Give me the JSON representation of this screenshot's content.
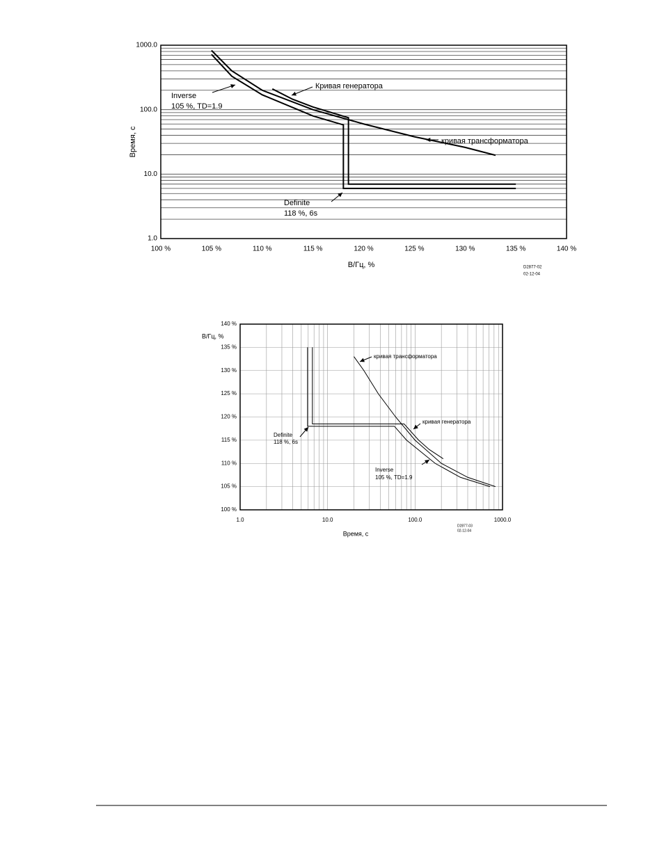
{
  "chart_data": [
    {
      "type": "line",
      "xlabel": "В/Гц, %",
      "ylabel": "Время, с",
      "xscale": "linear",
      "yscale": "log",
      "xlim": [
        100,
        140
      ],
      "ylim": [
        1,
        1000
      ],
      "xticks": [
        {
          "value": 100,
          "label": "100 %"
        },
        {
          "value": 105,
          "label": "105 %"
        },
        {
          "value": 110,
          "label": "110 %"
        },
        {
          "value": 115,
          "label": "115 %"
        },
        {
          "value": 120,
          "label": "120 %"
        },
        {
          "value": 125,
          "label": "125 %"
        },
        {
          "value": 130,
          "label": "130 %"
        },
        {
          "value": 135,
          "label": "135 %"
        },
        {
          "value": 140,
          "label": "140 %"
        }
      ],
      "yticks": [
        {
          "value": 1,
          "label": "1.0"
        },
        {
          "value": 10,
          "label": "10.0"
        },
        {
          "value": 100,
          "label": "100.0"
        },
        {
          "value": 1000,
          "label": "1000.0"
        }
      ],
      "grid": {
        "x": false,
        "y": true
      },
      "line_width": 2,
      "series": [
        {
          "color": "#000000",
          "x": [
            105,
            107,
            110,
            115,
            120,
            125,
            130,
            133
          ],
          "values": [
            830,
            400,
            200,
            100,
            60,
            38,
            26,
            19.6
          ]
        },
        {
          "color": "#000000",
          "x": [
            105,
            107,
            110,
            115,
            118,
            118,
            135
          ],
          "values": [
            720,
            330,
            170,
            80,
            58,
            6,
            6
          ]
        },
        {
          "color": "#000000",
          "x": [
            111,
            113,
            115,
            118.5,
            118.5,
            135
          ],
          "values": [
            210,
            145,
            110,
            75,
            7,
            7
          ]
        }
      ],
      "annotations": [
        "Кривая генератора",
        "кривая трансформатора",
        "Inverse",
        "105 %, TD=1.9",
        "Definite",
        "118 %, 6s"
      ],
      "code": [
        "D2877-02",
        "02-12-04"
      ]
    },
    {
      "type": "line",
      "xlabel": "Время, с",
      "ylabel": "В/Гц, %",
      "xscale": "log",
      "yscale": "linear",
      "xlim": [
        1,
        1000
      ],
      "ylim": [
        100,
        140
      ],
      "xticks": [
        {
          "value": 1,
          "label": "1.0"
        },
        {
          "value": 10,
          "label": "10.0"
        },
        {
          "value": 100,
          "label": "100.0"
        },
        {
          "value": 1000,
          "label": "1000.0"
        }
      ],
      "yticks": [
        {
          "value": 100,
          "label": "100 %"
        },
        {
          "value": 105,
          "label": "105 %"
        },
        {
          "value": 110,
          "label": "110 %"
        },
        {
          "value": 115,
          "label": "115 %"
        },
        {
          "value": 120,
          "label": "120 %"
        },
        {
          "value": 125,
          "label": "125 %"
        },
        {
          "value": 130,
          "label": "130 %"
        },
        {
          "value": 135,
          "label": "135 %"
        },
        {
          "value": 140,
          "label": "140 %"
        }
      ],
      "grid": {
        "x": true,
        "y": true
      },
      "line_width": 1,
      "series": [
        {
          "color": "#000000",
          "x": [
            20,
            26,
            38,
            60,
            100,
            200,
            400,
            830
          ],
          "values": [
            133,
            130,
            125,
            120,
            115,
            110,
            107,
            105
          ]
        },
        {
          "color": "#000000",
          "x": [
            5.9,
            5.9,
            58,
            80,
            170,
            330,
            720
          ],
          "values": [
            135,
            118,
            118,
            115,
            110,
            107,
            105
          ]
        },
        {
          "color": "#000000",
          "x": [
            6.7,
            6.7,
            75,
            110,
            145,
            210
          ],
          "values": [
            135,
            118.5,
            118.5,
            115,
            113,
            111
          ]
        }
      ],
      "annotations": [
        "кривая трансформатора",
        "кривая генератора",
        "Definite",
        "118 %, 6s",
        "Inverse",
        "105 %, TD=1.9"
      ],
      "code": [
        "D2877-03",
        "02-12-04"
      ]
    }
  ]
}
